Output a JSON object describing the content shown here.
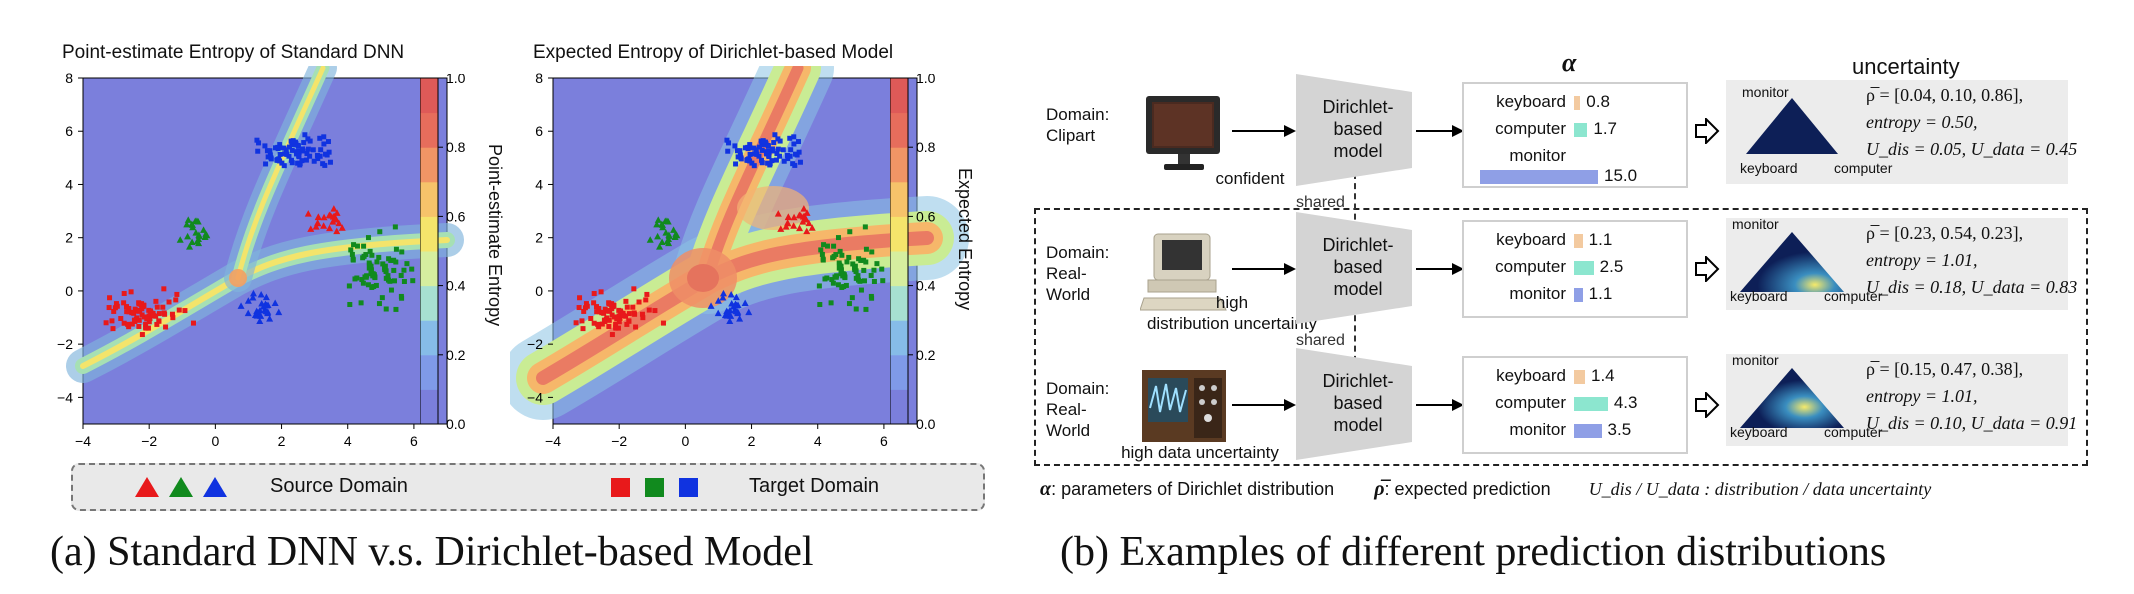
{
  "panel_a": {
    "left_plot": {
      "title": "Point-estimate Entropy of Standard DNN",
      "colorbar_label": "Point-estimate Entropy"
    },
    "right_plot": {
      "title": "Expected Entropy of Dirichlet-based Model",
      "colorbar_label": "Expected Entropy"
    },
    "x_ticks": [
      "−4",
      "−2",
      "0",
      "2",
      "4",
      "6"
    ],
    "y_ticks": [
      "8",
      "6",
      "4",
      "2",
      "0",
      "−2",
      "−4"
    ],
    "cbar_ticks": [
      "1.0",
      "0.8",
      "0.6",
      "0.4",
      "0.2",
      "0.0"
    ],
    "legend": {
      "source_label": "Source Domain",
      "target_label": "Target Domain",
      "colors": [
        "#e8191b",
        "#118a1e",
        "#1033e0"
      ]
    },
    "caption": "(a)  Standard DNN v.s. Dirichlet-based Model"
  },
  "panel_b": {
    "alpha_header": "α",
    "uncertainty_header": "uncertainty",
    "model_label": [
      "Dirichlet-",
      "based",
      "model"
    ],
    "shared_label": "shared",
    "class_names": [
      "keyboard",
      "computer",
      "monitor"
    ],
    "rows": [
      {
        "domain": [
          "Domain:",
          "Clipart"
        ],
        "image_caption": [
          "confident"
        ],
        "alphas": [
          "0.8",
          "1.7",
          "15.0"
        ],
        "alpha_values": [
          0.8,
          1.7,
          15.0
        ],
        "prob": "ρ̅ = [0.04, 0.10, 0.86],",
        "entropy": "entropy = 0.50,",
        "udis_udata": "U_dis = 0.05,  U_data = 0.45",
        "u_dis": "U",
        "tri_labels": [
          "monitor",
          "keyboard",
          "computer"
        ]
      },
      {
        "domain": [
          "Domain:",
          "Real-World"
        ],
        "image_caption": [
          "high",
          "distribution uncertainty"
        ],
        "alphas": [
          "1.1",
          "2.5",
          "1.1"
        ],
        "alpha_values": [
          1.1,
          2.5,
          1.1
        ],
        "prob": "ρ̅ = [0.23, 0.54, 0.23],",
        "entropy": "entropy = 1.01,",
        "udis_udata": "U_dis = 0.18,  U_data = 0.83",
        "tri_labels": [
          "monitor",
          "keyboard",
          "computer"
        ]
      },
      {
        "domain": [
          "Domain:",
          "Real-World"
        ],
        "image_caption": [
          "high data uncertainty"
        ],
        "alphas": [
          "1.4",
          "4.3",
          "3.5"
        ],
        "alpha_values": [
          1.4,
          4.3,
          3.5
        ],
        "prob": "ρ̅ = [0.15, 0.47, 0.38],",
        "entropy": "entropy = 1.01,",
        "udis_udata": "U_dis = 0.10,  U_data = 0.91",
        "tri_labels": [
          "monitor",
          "keyboard",
          "computer"
        ]
      }
    ],
    "footer": {
      "alpha_def": ": parameters of Dirichlet distribution",
      "alpha_sym": "α",
      "rho_def": ": expected prediction",
      "rho_sym": "ρ̅",
      "u_def": "U_dis / U_data : distribution / data uncertainty"
    },
    "caption": "(b)  Examples of different prediction distributions"
  }
}
